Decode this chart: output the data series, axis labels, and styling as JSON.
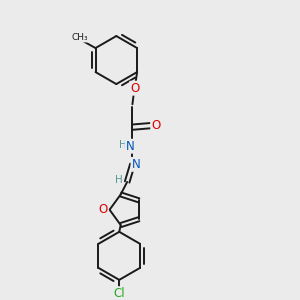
{
  "background_color": "#ebebeb",
  "bond_color": "#1a1a1a",
  "atom_colors": {
    "O": "#dd0000",
    "N": "#0055bb",
    "Cl": "#22aa22",
    "C": "#1a1a1a",
    "H": "#559999"
  }
}
